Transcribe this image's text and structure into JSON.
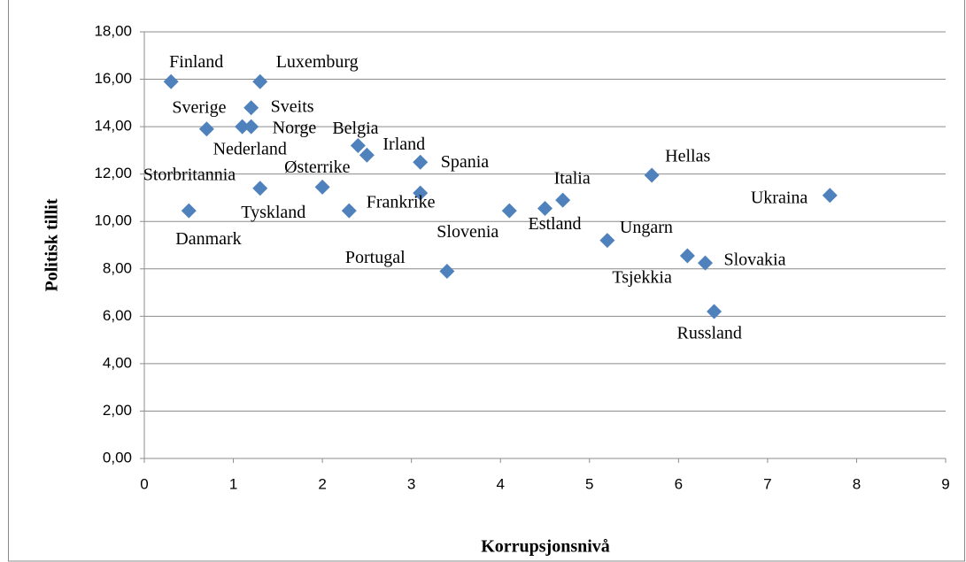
{
  "chart_data": {
    "type": "scatter",
    "x_label": "Korrupsjonsnivå",
    "y_label": "Politisk tillit",
    "xlim": [
      0,
      9
    ],
    "xticks": [
      0,
      1,
      2,
      3,
      4,
      5,
      6,
      7,
      8,
      9
    ],
    "ylim": [
      0,
      18
    ],
    "yticks": [
      {
        "value": 0,
        "label": "0,00"
      },
      {
        "value": 2,
        "label": "2,00"
      },
      {
        "value": 4,
        "label": "4,00"
      },
      {
        "value": 6,
        "label": "6,00"
      },
      {
        "value": 8,
        "label": "8,00"
      },
      {
        "value": 10,
        "label": "10,00"
      },
      {
        "value": 12,
        "label": "12,00"
      },
      {
        "value": 14,
        "label": "14,00"
      },
      {
        "value": 16,
        "label": "16,00"
      },
      {
        "value": 18,
        "label": "18,00"
      }
    ],
    "grid": true,
    "series": [
      {
        "color": "#4f81bd",
        "labels": [
          "Finland",
          "Luxemburg",
          "Sverige",
          "Sveits",
          "Nederland",
          "Norge",
          "Belgia",
          "Irland",
          "Spania",
          "Storbritannia",
          "Østerrike",
          "Frankrike",
          "Danmark",
          "Tyskland",
          "Slovenia",
          "Estland",
          "Italia",
          "Hellas",
          "Ukraina",
          "Ungarn",
          "Tsjekkia",
          "Slovakia",
          "Portugal",
          "Russland"
        ],
        "x": [
          0.3,
          1.3,
          0.7,
          1.2,
          1.1,
          1.2,
          2.4,
          2.5,
          3.1,
          1.3,
          2.0,
          3.1,
          0.5,
          2.3,
          4.1,
          4.5,
          4.7,
          5.7,
          7.7,
          5.2,
          6.1,
          6.3,
          3.4,
          6.4
        ],
        "values": [
          15.9,
          15.9,
          13.9,
          14.8,
          14.0,
          14.0,
          13.2,
          12.8,
          12.5,
          11.4,
          11.45,
          11.2,
          10.45,
          10.45,
          10.45,
          10.55,
          10.9,
          11.95,
          11.1,
          9.2,
          8.55,
          8.25,
          7.9,
          6.2
        ]
      }
    ]
  }
}
